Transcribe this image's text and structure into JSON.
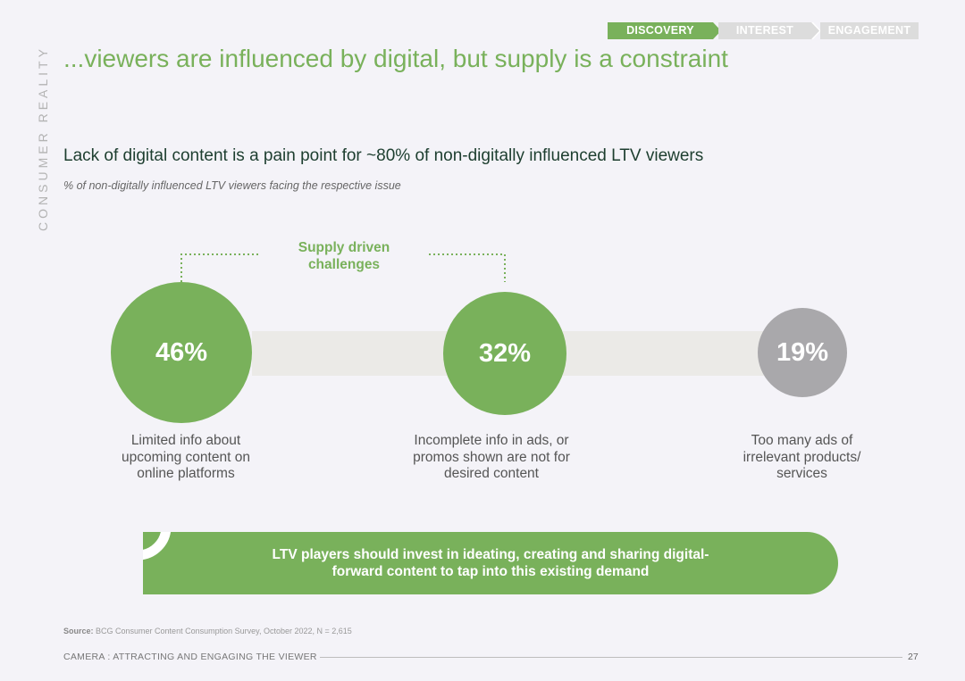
{
  "section_label": "CONSUMER REALITY",
  "stages": [
    {
      "label": "DISCOVERY",
      "active": true
    },
    {
      "label": "INTEREST",
      "active": false
    },
    {
      "label": "ENGAGEMENT",
      "active": false
    }
  ],
  "title": "...viewers are influenced by digital, but supply is a constraint",
  "headline": "Lack of digital content is a pain point for ~80% of non-digitally influenced LTV viewers",
  "subtitle": "% of non-digitally influenced LTV viewers facing the respective issue",
  "bracket_label_line1": "Supply driven",
  "bracket_label_line2": "challenges",
  "issues": [
    {
      "value": "46%",
      "line1": "Limited info about",
      "line2": "upcoming content on",
      "line3": "online platforms",
      "color": "#79b15b"
    },
    {
      "value": "32%",
      "line1": "Incomplete info in ads, or",
      "line2": "promos shown are not for",
      "line3": "desired content",
      "color": "#79b15b"
    },
    {
      "value": "19%",
      "line1": "Too many ads of",
      "line2": "irrelevant products/",
      "line3": "services",
      "color": "#a9a8ab"
    }
  ],
  "callout_line1": "LTV players should invest in ideating, creating and sharing digital-",
  "callout_line2": "forward content to tap into this existing demand",
  "source_label": "Source:",
  "source_text": "BCG Consumer Content Consumption Survey, October 2022, N = 2,615",
  "footer_title": "CAMERA : ATTRACTING AND ENGAGING THE VIEWER",
  "page_number": "27",
  "colors": {
    "accent": "#79b15b",
    "grey_circle": "#a9a8ab",
    "headline": "#1d3e2f"
  }
}
